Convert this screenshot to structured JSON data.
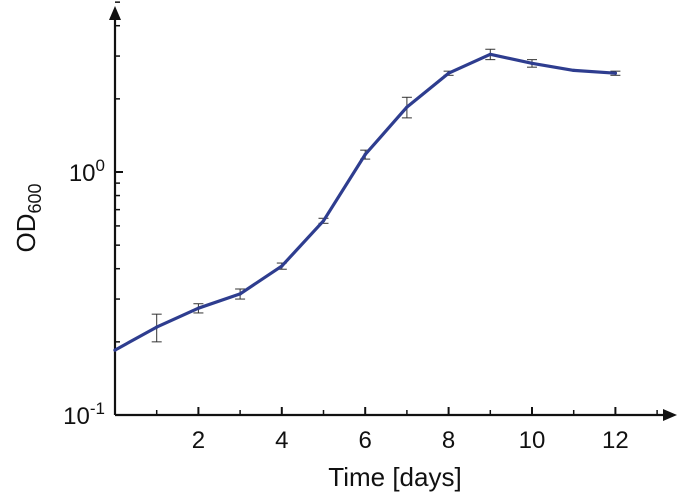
{
  "chart_data": {
    "type": "line",
    "xlabel": "Time [days]",
    "ylabel": {
      "main": "OD",
      "subscript": "600"
    },
    "xlim": [
      0,
      13.5
    ],
    "ylim": [
      0.1,
      5
    ],
    "x_scale": "linear",
    "y_scale": "log",
    "x_ticks": [
      {
        "value": 2,
        "label": "2"
      },
      {
        "value": 4,
        "label": "4"
      },
      {
        "value": 6,
        "label": "6"
      },
      {
        "value": 8,
        "label": "8"
      },
      {
        "value": 10,
        "label": "10"
      },
      {
        "value": 12,
        "label": "12"
      }
    ],
    "y_ticks": [
      {
        "value": 0.1,
        "base": "10",
        "exponent": "-1"
      },
      {
        "value": 1,
        "base": "10",
        "exponent": "0"
      }
    ],
    "grid": false,
    "legend": "none",
    "line_color": "#2e3d8f",
    "errorbar_color": "#333333",
    "axis_color": "#111111",
    "series": [
      {
        "x": [
          0,
          1,
          2,
          3,
          4,
          5,
          6,
          7,
          8,
          9,
          10,
          11,
          12
        ],
        "y": [
          0.185,
          0.23,
          0.275,
          0.315,
          0.41,
          0.63,
          1.18,
          1.85,
          2.55,
          3.05,
          2.8,
          2.62,
          2.55
        ],
        "error": [
          0,
          0.03,
          0.012,
          0.015,
          0.012,
          0.015,
          0.05,
          0.18,
          0.05,
          0.15,
          0.1,
          0,
          0.05
        ]
      }
    ]
  }
}
